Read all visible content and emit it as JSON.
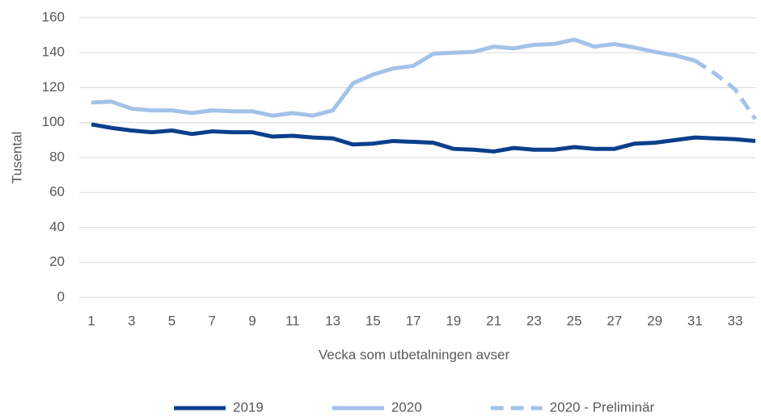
{
  "chart_data": {
    "type": "line",
    "ylabel": "Tusental",
    "xlabel": "Vecka som utbetalningen avser",
    "x": [
      1,
      2,
      3,
      4,
      5,
      6,
      7,
      8,
      9,
      10,
      11,
      12,
      13,
      14,
      15,
      16,
      17,
      18,
      19,
      20,
      21,
      22,
      23,
      24,
      25,
      26,
      27,
      28,
      29,
      30,
      31,
      32,
      33,
      34
    ],
    "xlim": [
      1,
      34
    ],
    "xticks": [
      1,
      3,
      5,
      7,
      9,
      11,
      13,
      15,
      17,
      19,
      21,
      23,
      25,
      27,
      29,
      31,
      33
    ],
    "ylim": [
      0,
      160
    ],
    "yticks": [
      0,
      20,
      40,
      60,
      80,
      100,
      120,
      140,
      160
    ],
    "grid": true,
    "legend": "bottom",
    "series": [
      {
        "name": "2019",
        "color": "#0b3f8c",
        "style": "solid",
        "values": [
          99,
          97,
          95.5,
          94.5,
          95.5,
          93.5,
          95,
          94.5,
          94.5,
          92,
          92.5,
          91.5,
          91,
          87.5,
          88,
          89.5,
          89,
          88.5,
          85,
          84.5,
          83.5,
          85.5,
          84.5,
          84.5,
          86,
          85,
          85,
          88,
          88.5,
          90,
          91.5,
          91,
          90.5,
          89.5
        ]
      },
      {
        "name": "2020",
        "color": "#a3c2e8",
        "style": "solid",
        "values": [
          111.5,
          112,
          108,
          107,
          107,
          105.5,
          107,
          106.5,
          106.5,
          104,
          105.5,
          104,
          107,
          122.5,
          127.5,
          131,
          132.5,
          139.5,
          140,
          140.5,
          143.5,
          142.5,
          144.5,
          145,
          147.5,
          143.5,
          145,
          143,
          140.5,
          138.5,
          135.5,
          null,
          null,
          null
        ]
      },
      {
        "name": "2020 - Preliminär",
        "color": "#a3c2e8",
        "style": "dashed",
        "values": [
          null,
          null,
          null,
          null,
          null,
          null,
          null,
          null,
          null,
          null,
          null,
          null,
          null,
          null,
          null,
          null,
          null,
          null,
          null,
          null,
          null,
          null,
          null,
          null,
          null,
          null,
          null,
          null,
          null,
          null,
          135.5,
          128,
          119,
          102
        ]
      }
    ]
  }
}
